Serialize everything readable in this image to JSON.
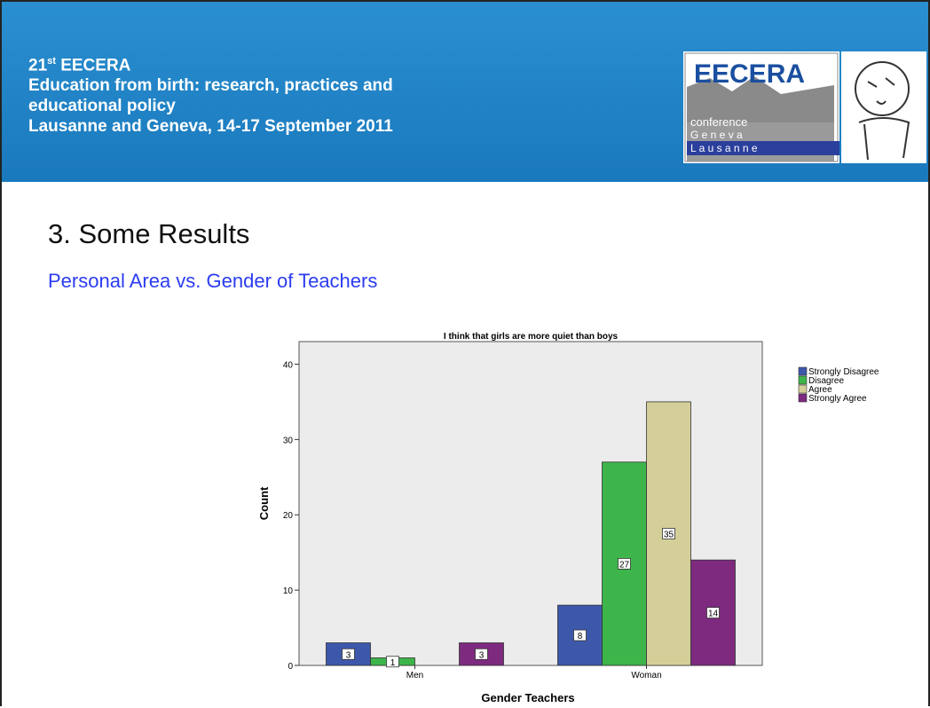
{
  "header": {
    "edition": {
      "number": "21",
      "suffix": "st",
      "name": "EECERA"
    },
    "lines": [
      "Education from birth: research, practices and",
      "educational policy",
      "Lausanne and Geneva, 14-17 September 2011"
    ],
    "logo": {
      "name": "EECERA",
      "line1": "conference",
      "line2": "G e n e v a",
      "line3": "L a u s a n n e"
    }
  },
  "slide": {
    "title": "3. Some Results",
    "subtitle": "Personal Area vs. Gender of Teachers"
  },
  "chart_data": {
    "type": "bar",
    "title": "I think that girls are more quiet than boys",
    "x_label": "Gender Teachers",
    "y_label": "Count",
    "categories": [
      "Men",
      "Woman"
    ],
    "series": [
      {
        "name": "Strongly Disagree",
        "color": "#3d58ab",
        "values": [
          3,
          8
        ]
      },
      {
        "name": "Disagree",
        "color": "#3db54a",
        "values": [
          1,
          27
        ]
      },
      {
        "name": "Agree",
        "color": "#d4cf98",
        "values": [
          null,
          35
        ]
      },
      {
        "name": "Strongly Agree",
        "color": "#7d2a7f",
        "values": [
          3,
          14
        ]
      }
    ],
    "ylim": [
      0,
      43
    ],
    "yticks": [
      0,
      10,
      20,
      30,
      40
    ],
    "grid": false,
    "legend": "right"
  }
}
